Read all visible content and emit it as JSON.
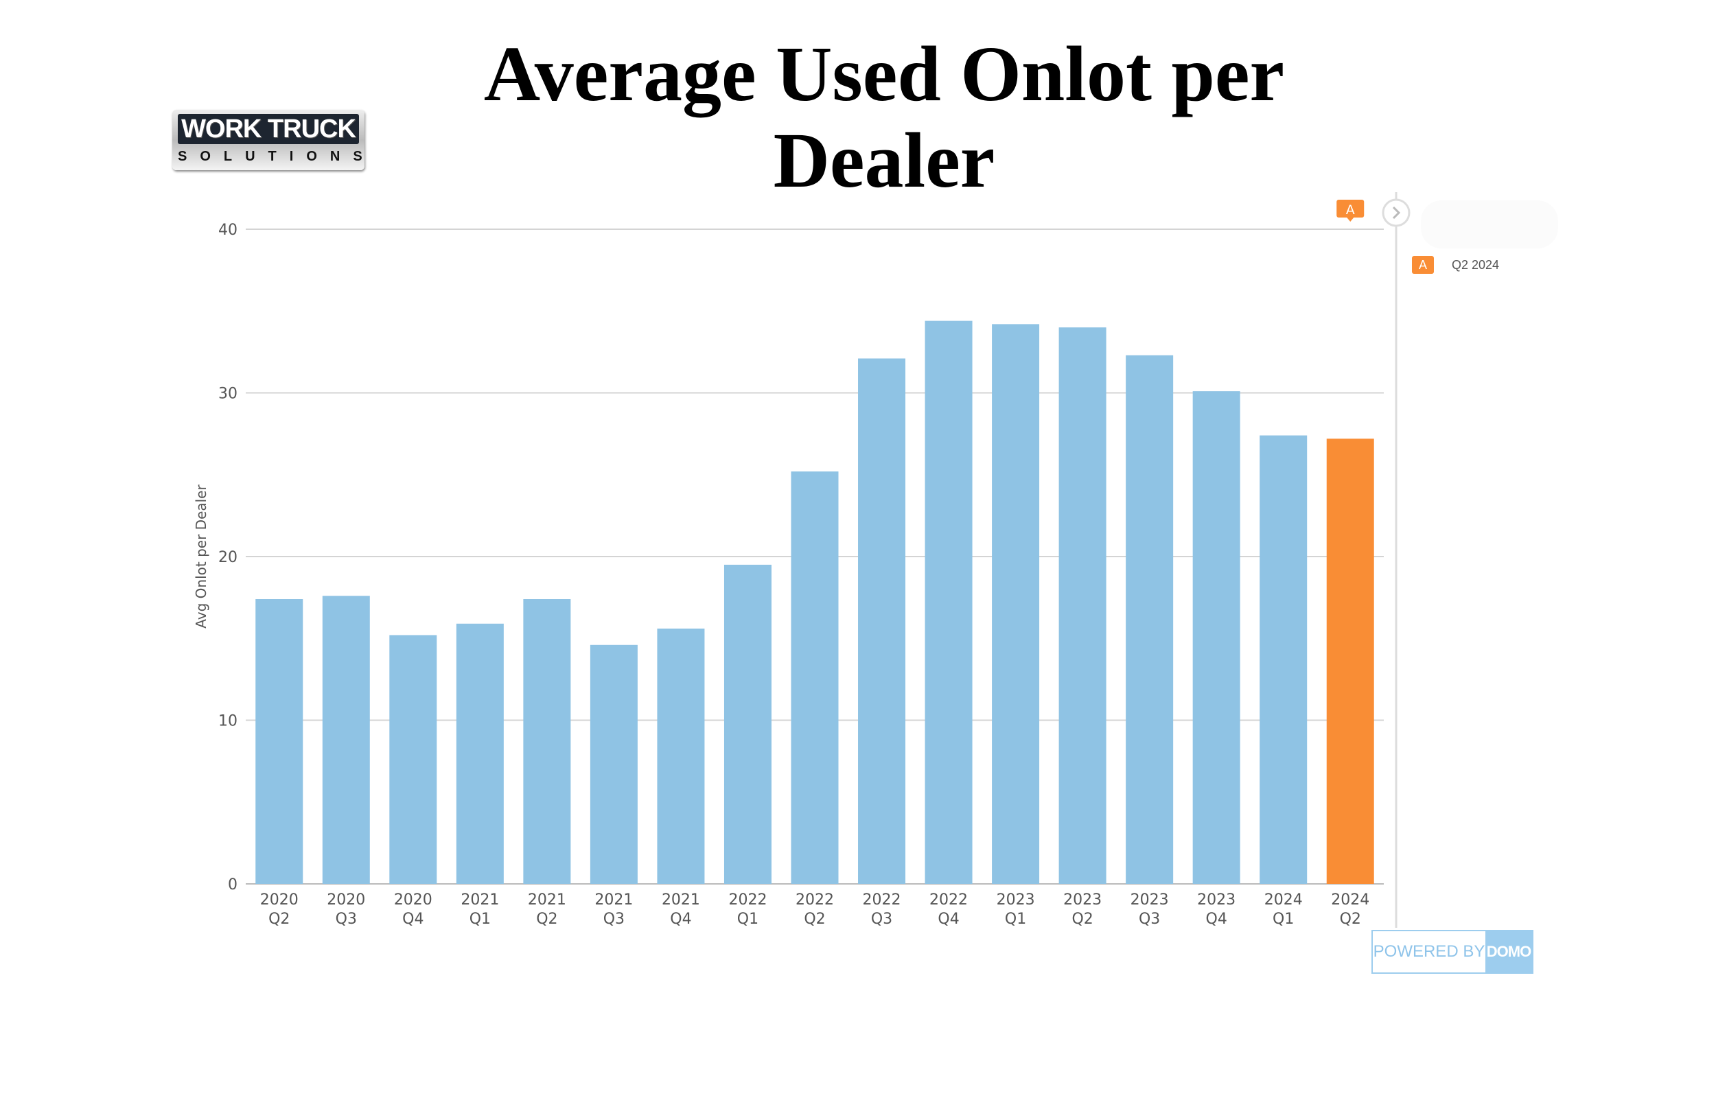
{
  "title": "Average Used Onlot per Dealer",
  "logo": {
    "line1": "WORK TRUCK",
    "line2": "SOLUTIONS"
  },
  "legend": {
    "badge": "A",
    "label": "Q2 2024"
  },
  "annotation_marker": "A",
  "footer": {
    "powered_by": "POWERED BY",
    "brand": "DOMO"
  },
  "colors": {
    "bar": "#8fc3e4",
    "highlight": "#f98d35",
    "grid": "#d4d4d4"
  },
  "chart_data": {
    "type": "bar",
    "title": "Average Used Onlot per Dealer",
    "xlabel": "",
    "ylabel": "Avg Onlot per Dealer",
    "ylim": [
      0,
      40
    ],
    "yticks": [
      0,
      10,
      20,
      30,
      40
    ],
    "grid": true,
    "categories": [
      [
        "2020",
        "Q2"
      ],
      [
        "2020",
        "Q3"
      ],
      [
        "2020",
        "Q4"
      ],
      [
        "2021",
        "Q1"
      ],
      [
        "2021",
        "Q2"
      ],
      [
        "2021",
        "Q3"
      ],
      [
        "2021",
        "Q4"
      ],
      [
        "2022",
        "Q1"
      ],
      [
        "2022",
        "Q2"
      ],
      [
        "2022",
        "Q3"
      ],
      [
        "2022",
        "Q4"
      ],
      [
        "2023",
        "Q1"
      ],
      [
        "2023",
        "Q2"
      ],
      [
        "2023",
        "Q3"
      ],
      [
        "2023",
        "Q4"
      ],
      [
        "2024",
        "Q1"
      ],
      [
        "2024",
        "Q2"
      ]
    ],
    "values": [
      17.4,
      17.6,
      15.2,
      15.9,
      17.4,
      14.6,
      15.6,
      19.5,
      25.2,
      32.1,
      34.4,
      34.2,
      34.0,
      32.3,
      30.1,
      27.4,
      27.2
    ],
    "highlight_index": 16
  }
}
